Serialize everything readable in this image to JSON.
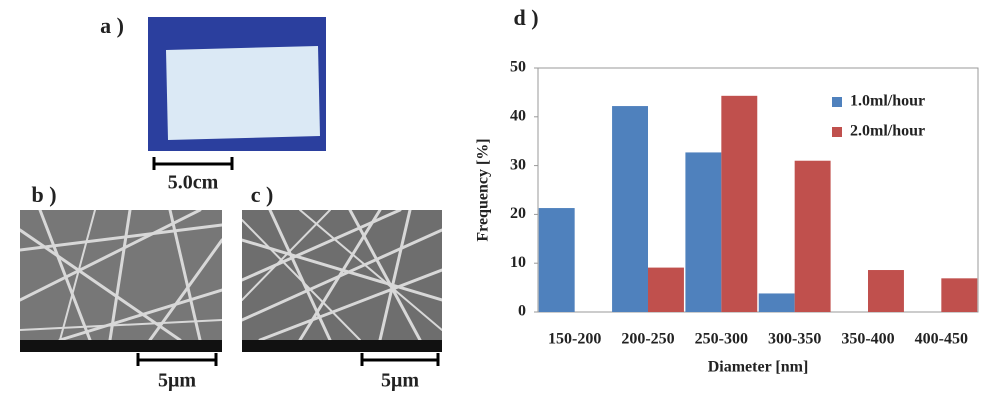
{
  "panels": {
    "a": {
      "label": "a )",
      "scale": "5.0cm"
    },
    "b": {
      "label": "b )",
      "scale": "5μm"
    },
    "c": {
      "label": "c )",
      "scale": "5μm"
    }
  },
  "chart_data": {
    "type": "bar",
    "label": "d )",
    "x_label": "Diameter [nm]",
    "y_label": "Frequency [%]",
    "categories": [
      "150-200",
      "200-250",
      "250-300",
      "300-350",
      "350-400",
      "400-450"
    ],
    "series": [
      {
        "name": "1.0ml/hour",
        "color": "#4f81bd",
        "values": [
          21.3,
          42.2,
          32.7,
          3.8,
          0,
          0
        ]
      },
      {
        "name": "2.0ml/hour",
        "color": "#c0504d",
        "values": [
          0,
          9.1,
          44.3,
          31.0,
          8.6,
          6.9
        ]
      }
    ],
    "ylim": [
      0,
      50
    ],
    "yticks": [
      0,
      10,
      20,
      30,
      40,
      50
    ],
    "grid": false,
    "legend": "upper right"
  }
}
